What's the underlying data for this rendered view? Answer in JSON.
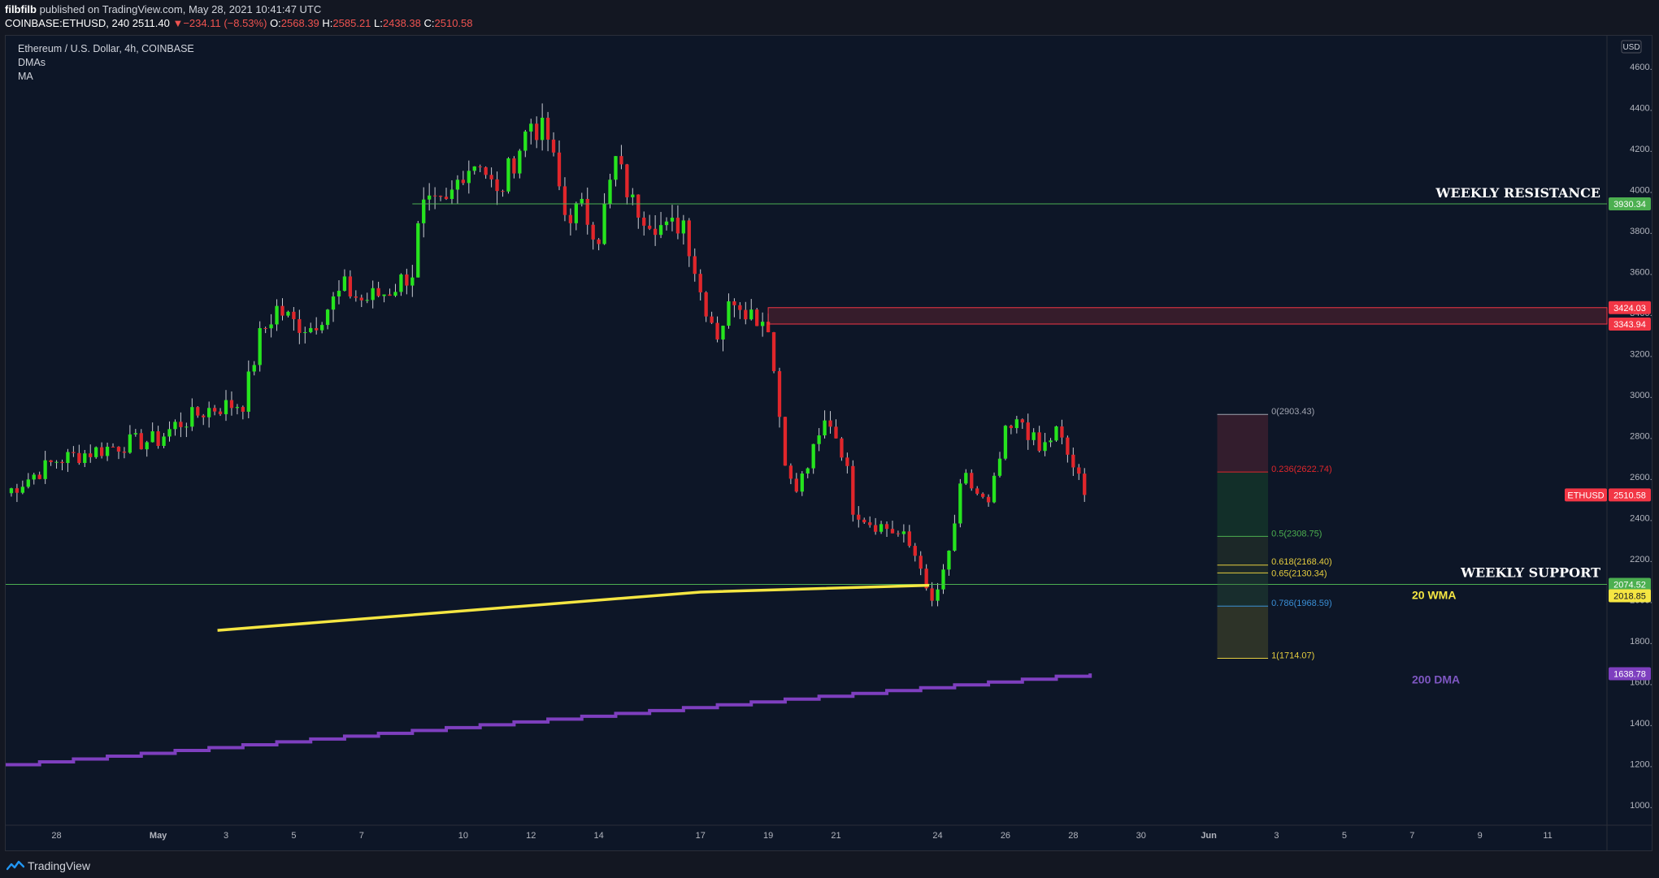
{
  "header": {
    "author": "filbfilb",
    "published": "published on TradingView.com, May 28, 2021 10:41:47 UTC",
    "symbol_interval": "COINBASE:ETHUSD, 240",
    "last": "2511.40",
    "change_arrow": "▼",
    "change": "−234.11 (−8.53%)",
    "o_label": "O:",
    "o": "2568.39",
    "h_label": "H:",
    "h": "2585.21",
    "l_label": "L:",
    "l": "2438.38",
    "c_label": "C:",
    "c": "2510.58"
  },
  "legend": {
    "title": "Ethereum / U.S. Dollar, 4h, COINBASE",
    "ind1": "DMAs",
    "ind2": "MA"
  },
  "footer": {
    "brand": "TradingView",
    "logo_icon": "tradingview-logo-icon"
  },
  "colors": {
    "background": "#0d1627",
    "up": "#26e41e",
    "down": "#e0262b",
    "support_line": "#4caf50",
    "zone": "#f23645",
    "wma": "#f5e642",
    "dma": "#7e3fbf"
  },
  "chart_data": {
    "type": "candlestick",
    "currency": "USD",
    "y_range": [
      900,
      4750
    ],
    "y_ticks": [
      "4600.00",
      "4400.00",
      "4200.00",
      "4000.00",
      "3800.00",
      "3600.00",
      "3400.00",
      "3200.00",
      "3000.00",
      "2800.00",
      "2600.00",
      "2400.00",
      "2200.00",
      "2000.00",
      "1800.00",
      "1600.00",
      "1400.00",
      "1200.00",
      "1000.00"
    ],
    "x_range": [
      "2021-04-26T12:00",
      "2021-06-12T18:00"
    ],
    "x_ticks": [
      {
        "date": "2021-04-28",
        "label": "28"
      },
      {
        "date": "2021-05-01",
        "label": "May"
      },
      {
        "date": "2021-05-03",
        "label": "3"
      },
      {
        "date": "2021-05-05",
        "label": "5"
      },
      {
        "date": "2021-05-07",
        "label": "7"
      },
      {
        "date": "2021-05-10",
        "label": "10"
      },
      {
        "date": "2021-05-12",
        "label": "12"
      },
      {
        "date": "2021-05-14",
        "label": "14"
      },
      {
        "date": "2021-05-17",
        "label": "17"
      },
      {
        "date": "2021-05-19",
        "label": "19"
      },
      {
        "date": "2021-05-21",
        "label": "21"
      },
      {
        "date": "2021-05-24",
        "label": "24"
      },
      {
        "date": "2021-05-26",
        "label": "26"
      },
      {
        "date": "2021-05-28",
        "label": "28"
      },
      {
        "date": "2021-05-30",
        "label": "30"
      },
      {
        "date": "2021-06-01",
        "label": "Jun"
      },
      {
        "date": "2021-06-03",
        "label": "3"
      },
      {
        "date": "2021-06-05",
        "label": "5"
      },
      {
        "date": "2021-06-07",
        "label": "7"
      },
      {
        "date": "2021-06-09",
        "label": "9"
      },
      {
        "date": "2021-06-11",
        "label": "11"
      }
    ],
    "price_path": [
      [
        "2021-04-26T12:00",
        2520
      ],
      [
        "2021-04-28T00:00",
        2680
      ],
      [
        "2021-04-30T00:00",
        2760
      ],
      [
        "2021-05-01T00:00",
        2780
      ],
      [
        "2021-05-01T12:00",
        2850
      ],
      [
        "2021-05-02T12:00",
        2930
      ],
      [
        "2021-05-03T12:00",
        2960
      ],
      [
        "2021-05-04T00:00",
        3280
      ],
      [
        "2021-05-04T12:00",
        3420
      ],
      [
        "2021-05-05T00:00",
        3350
      ],
      [
        "2021-05-05T12:00",
        3330
      ],
      [
        "2021-05-06T12:00",
        3520
      ],
      [
        "2021-05-07T00:00",
        3460
      ],
      [
        "2021-05-07T18:00",
        3500
      ],
      [
        "2021-05-08T12:00",
        3600
      ],
      [
        "2021-05-08T18:00",
        3900
      ],
      [
        "2021-05-09T12:00",
        3920
      ],
      [
        "2021-05-10T00:00",
        4100
      ],
      [
        "2021-05-10T12:00",
        4150
      ],
      [
        "2021-05-11T00:00",
        3960
      ],
      [
        "2021-05-11T12:00",
        4150
      ],
      [
        "2021-05-12T00:00",
        4330
      ],
      [
        "2021-05-12T12:00",
        4250
      ],
      [
        "2021-05-13T00:00",
        3880
      ],
      [
        "2021-05-13T12:00",
        3900
      ],
      [
        "2021-05-14T00:00",
        3780
      ],
      [
        "2021-05-14T12:00",
        4140
      ],
      [
        "2021-05-15T00:00",
        3930
      ],
      [
        "2021-05-16T00:00",
        3800
      ],
      [
        "2021-05-16T12:00",
        3850
      ],
      [
        "2021-05-17T00:00",
        3500
      ],
      [
        "2021-05-17T12:00",
        3300
      ],
      [
        "2021-05-18T00:00",
        3480
      ],
      [
        "2021-05-18T12:00",
        3400
      ],
      [
        "2021-05-19T00:00",
        3350
      ],
      [
        "2021-05-19T06:00",
        3000
      ],
      [
        "2021-05-19T12:00",
        2700
      ],
      [
        "2021-05-19T18:00",
        2500
      ],
      [
        "2021-05-20T12:00",
        2780
      ],
      [
        "2021-05-20T18:00",
        2900
      ],
      [
        "2021-05-21T06:00",
        2700
      ],
      [
        "2021-05-21T12:00",
        2450
      ],
      [
        "2021-05-22T00:00",
        2380
      ],
      [
        "2021-05-22T12:00",
        2350
      ],
      [
        "2021-05-23T00:00",
        2300
      ],
      [
        "2021-05-23T12:00",
        2180
      ],
      [
        "2021-05-23T18:00",
        1950
      ],
      [
        "2021-05-24T06:00",
        2150
      ],
      [
        "2021-05-24T18:00",
        2600
      ],
      [
        "2021-05-25T12:00",
        2450
      ],
      [
        "2021-05-26T00:00",
        2800
      ],
      [
        "2021-05-26T12:00",
        2870
      ],
      [
        "2021-05-27T00:00",
        2720
      ],
      [
        "2021-05-27T12:00",
        2820
      ],
      [
        "2021-05-28T00:00",
        2650
      ],
      [
        "2021-05-28T08:00",
        2510
      ]
    ],
    "last_price": 2510.58,
    "horizontal_levels": [
      {
        "label": "WEEKLY RESISTANCE",
        "value": 3930.34
      },
      {
        "label": "WEEKLY SUPPORT",
        "value": 2074.52
      }
    ],
    "zone": {
      "top": 3424.03,
      "bottom": 3343.94,
      "from": "2021-05-19T00:00"
    },
    "wma": {
      "label": "20 WMA",
      "value": 2018.85,
      "points": [
        [
          "2021-05-02T18:00",
          1850
        ],
        [
          "2021-05-17T00:00",
          2037
        ],
        [
          "2021-05-23T18:00",
          2070
        ]
      ]
    },
    "dma": {
      "label": "200 DMA",
      "value": 1638.78,
      "points": [
        [
          "2021-04-26T12:00",
          1195
        ],
        [
          "2021-05-28T12:00",
          1640
        ]
      ]
    },
    "fib": {
      "from": "2021-06-01T06:00",
      "to": "2021-06-02T18:00",
      "levels": [
        {
          "ratio": 0,
          "value": 2903.43,
          "label": "0(2903.43)",
          "color": "#a0a4b0"
        },
        {
          "ratio": 0.236,
          "value": 2622.74,
          "label": "0.236(2622.74)",
          "color": "#e0262b"
        },
        {
          "ratio": 0.5,
          "value": 2308.75,
          "label": "0.5(2308.75)",
          "color": "#4caf50"
        },
        {
          "ratio": 0.618,
          "value": 2168.4,
          "label": "0.618(2168.40)",
          "color": "#e5cd3f"
        },
        {
          "ratio": 0.65,
          "value": 2130.34,
          "label": "0.65(2130.34)",
          "color": "#e5cd3f"
        },
        {
          "ratio": 0.786,
          "value": 1968.59,
          "label": "0.786(1968.59)",
          "color": "#3a8fd6"
        },
        {
          "ratio": 1,
          "value": 1714.07,
          "label": "1(1714.07)",
          "color": "#e5cd3f"
        }
      ]
    },
    "axis_badges": [
      {
        "text": "3930.34",
        "value": 3930.34,
        "bg": "#4caf50",
        "fg": "#ffffff"
      },
      {
        "text": "3424.03",
        "value": 3424.03,
        "bg": "#f23645",
        "fg": "#ffffff"
      },
      {
        "text": "3343.94",
        "value": 3343.94,
        "bg": "#f23645",
        "fg": "#ffffff"
      },
      {
        "text": "2510.58",
        "value": 2510.58,
        "bg": "#f23645",
        "fg": "#ffffff",
        "tag": "ETHUSD"
      },
      {
        "text": "2074.52",
        "value": 2074.52,
        "bg": "#4caf50",
        "fg": "#ffffff"
      },
      {
        "text": "2018.85",
        "value": 2018.85,
        "bg": "#f5e642",
        "fg": "#131722"
      },
      {
        "text": "1638.78",
        "value": 1638.78,
        "bg": "#7e3fbf",
        "fg": "#ffffff"
      }
    ]
  }
}
